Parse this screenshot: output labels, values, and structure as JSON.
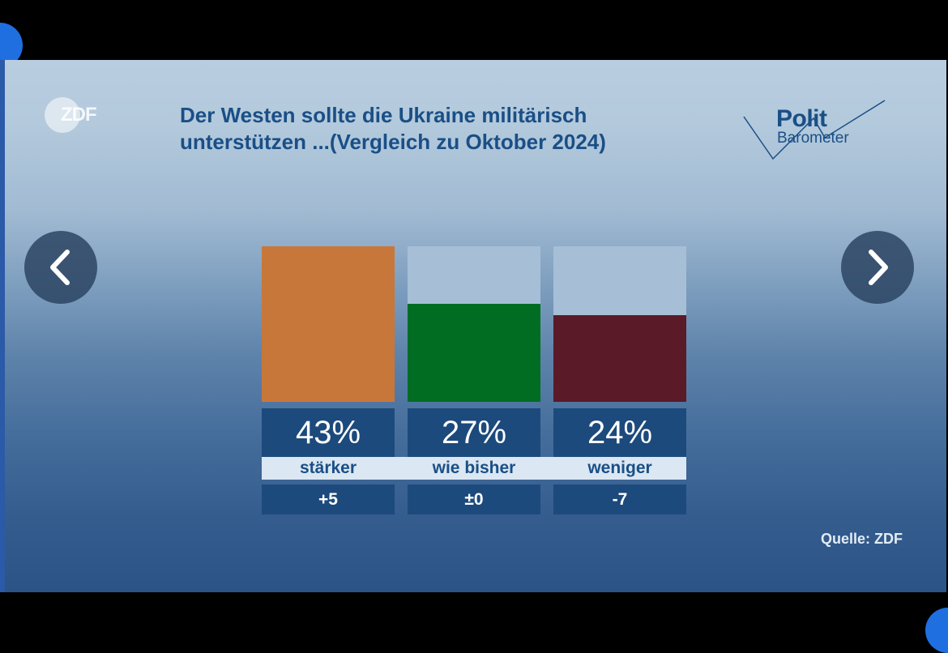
{
  "slide": {
    "title_line1": "Der Westen sollte die Ukraine militärisch",
    "title_line2": "unterstützen ...(Vergleich zu Oktober 2024)",
    "zdf_logo": "ZDF",
    "brand_polit": "Polit",
    "brand_barometer": "Barometer",
    "source": "Quelle: ZDF"
  },
  "navigation": {
    "prev_icon": "chevron-left-icon",
    "next_icon": "chevron-right-icon"
  },
  "chart_data": {
    "type": "bar",
    "title": "Der Westen sollte die Ukraine militärisch unterstützen ...(Vergleich zu Oktober 2024)",
    "categories": [
      "stärker",
      "wie bisher",
      "weniger"
    ],
    "values": [
      43,
      27,
      24
    ],
    "value_labels": [
      "43%",
      "27%",
      "24%"
    ],
    "change_labels": [
      "+5",
      "±0",
      "-7"
    ],
    "colors": [
      "#c8773a",
      "#006d23",
      "#5a1a28"
    ],
    "ylim": [
      0,
      43
    ],
    "track_color": "#a6bfd6"
  }
}
